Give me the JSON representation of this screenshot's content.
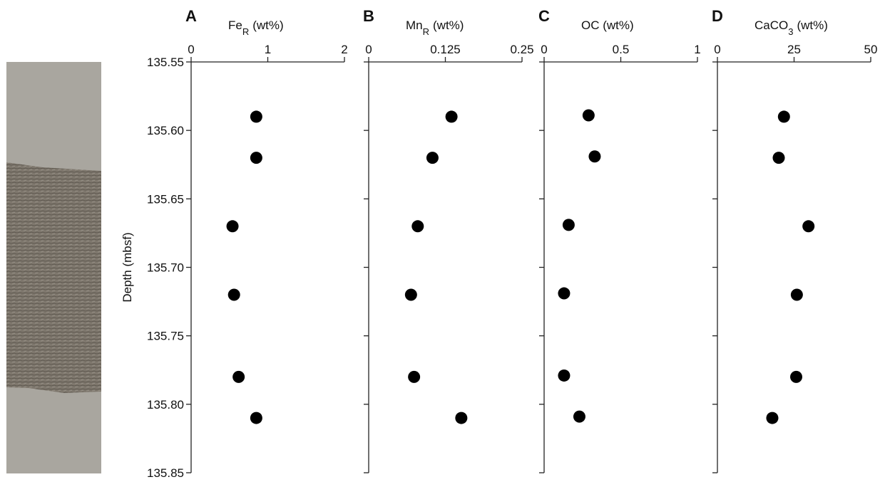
{
  "chart_data": [
    {
      "type": "scatter",
      "panel": "A",
      "xlabel": [
        "Fe",
        "R",
        "(wt%)"
      ],
      "ylabel": "Depth (mbsf)",
      "x": [
        0.85,
        0.85,
        0.54,
        0.56,
        0.62,
        0.85
      ],
      "y": [
        135.59,
        135.62,
        135.67,
        135.72,
        135.78,
        135.81
      ],
      "xlim": [
        0,
        2
      ],
      "xticks": [
        0,
        1,
        2
      ],
      "ylim": [
        135.55,
        135.85
      ],
      "yticks": [
        135.55,
        {
          "value": 135.6,
          "label": "135.60"
        },
        135.65,
        {
          "value": 135.7,
          "label": "135.70"
        },
        135.75,
        {
          "value": 135.8,
          "label": "135.80"
        },
        135.85
      ],
      "color": "#000000"
    },
    {
      "type": "scatter",
      "panel": "B",
      "xlabel": [
        "Mn",
        "R",
        "(wt%)"
      ],
      "x": [
        0.135,
        0.104,
        0.08,
        0.069,
        0.074,
        0.151
      ],
      "y": [
        135.59,
        135.62,
        135.67,
        135.72,
        135.78,
        135.81
      ],
      "xlim": [
        0,
        0.25
      ],
      "xticks": [
        0,
        0.125,
        0.25
      ],
      "ylim": [
        135.55,
        135.85
      ],
      "color": "#000000"
    },
    {
      "type": "scatter",
      "panel": "C",
      "xlabel": [
        "OC (wt%)"
      ],
      "x": [
        0.29,
        0.33,
        0.16,
        0.13,
        0.13,
        0.23
      ],
      "y": [
        135.589,
        135.619,
        135.669,
        135.719,
        135.779,
        135.809
      ],
      "xlim": [
        0,
        1
      ],
      "xticks": [
        0,
        0.5,
        1
      ],
      "ylim": [
        135.55,
        135.85
      ],
      "color": "#000000"
    },
    {
      "type": "scatter",
      "panel": "D",
      "xlabel": [
        "CaCO",
        "3",
        "(wt%)"
      ],
      "x": [
        21.7,
        20.0,
        29.7,
        25.9,
        25.7,
        17.9
      ],
      "y": [
        135.59,
        135.62,
        135.67,
        135.72,
        135.78,
        135.81
      ],
      "xlim": [
        0,
        50
      ],
      "xticks": [
        0,
        25,
        50
      ],
      "ylim": [
        135.55,
        135.85
      ],
      "color": "#000000"
    }
  ]
}
